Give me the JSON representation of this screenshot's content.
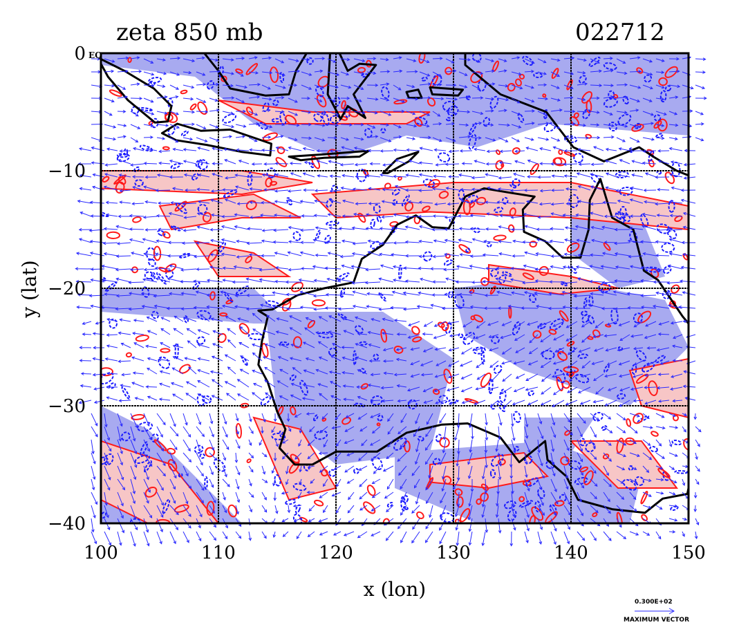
{
  "title": "zeta 850 mb",
  "datetime": "022712",
  "x_axis": {
    "label": "x (lon)",
    "ticks": [
      "100",
      "110",
      "120",
      "130",
      "140",
      "150"
    ],
    "range": [
      100,
      150
    ]
  },
  "y_axis": {
    "label": "y (lat)",
    "ticks": [
      "0",
      "−10",
      "−20",
      "−30",
      "−40"
    ],
    "range": [
      -40,
      0
    ]
  },
  "equator_label": "EQ",
  "vector_legend": {
    "value": "0.300E+02",
    "caption": "MAXIMUM VECTOR"
  },
  "colors": {
    "positive": "#ff1a1a",
    "positive_fill": "#f7c6c6",
    "negative": "#1a1aff",
    "negative_fill": "#a8aaf0",
    "coast": "#000000",
    "vectors": "#2828ff"
  }
}
